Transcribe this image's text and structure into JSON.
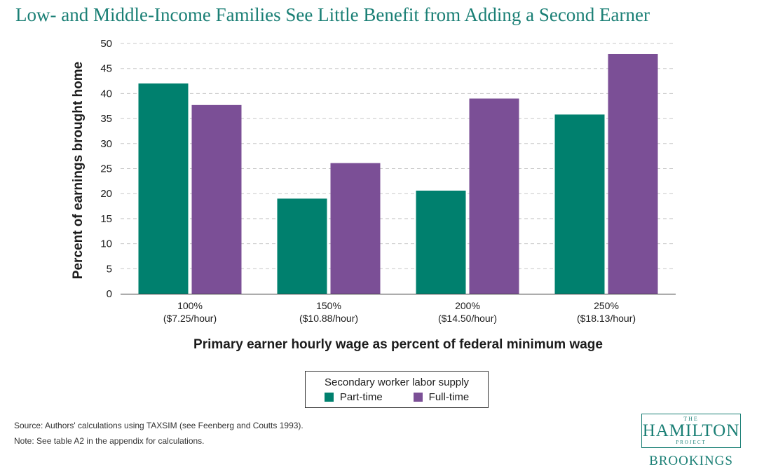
{
  "title": "Low- and Middle-Income Families See Little Benefit from Adding a Second Earner",
  "chart_data": {
    "type": "bar",
    "categories": [
      [
        "100%",
        "($7.25/hour)"
      ],
      [
        "150%",
        "($10.88/hour)"
      ],
      [
        "200%",
        "($14.50/hour)"
      ],
      [
        "250%",
        "($18.13/hour)"
      ]
    ],
    "series": [
      {
        "name": "Part-time",
        "color": "#00806e",
        "values": [
          42,
          19,
          20.6,
          35.8
        ]
      },
      {
        "name": "Full-time",
        "color": "#7b4f96",
        "values": [
          37.7,
          26.1,
          39,
          47.9
        ]
      }
    ],
    "xlabel": "Primary earner hourly wage as percent of federal minimum wage",
    "ylabel": "Percent of earnings brought home",
    "ylim": [
      0,
      50
    ],
    "yticks": [
      0,
      5,
      10,
      15,
      20,
      25,
      30,
      35,
      40,
      45,
      50
    ],
    "grid": "horizontal-dashed"
  },
  "legend": {
    "title": "Secondary worker labor supply",
    "items": [
      "Part-time",
      "Full-time"
    ]
  },
  "source": "Source: Authors' calculations using TAXSIM (see Feenberg and Coutts 1993).",
  "note": "Note: See table A2 in the appendix for calculations.",
  "logo": {
    "the": "THE",
    "main": "HAMILTON",
    "project": "PROJECT",
    "brookings": "BROOKINGS"
  }
}
